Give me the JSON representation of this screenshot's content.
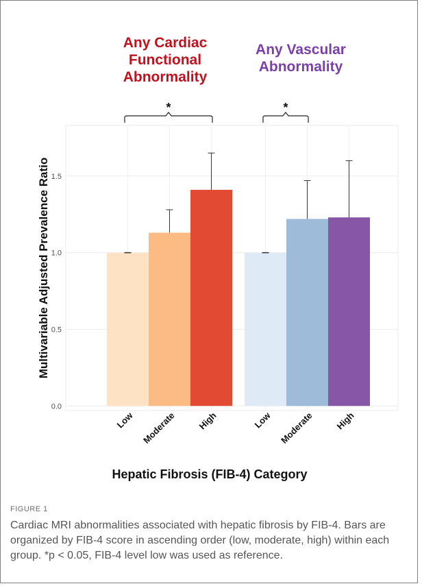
{
  "figure": {
    "label": "FIGURE 1",
    "caption": "Cardiac MRI abnormalities associated with hepatic fibrosis by FIB-4. Bars are organized by FIB-4 score in ascending order (low, moderate, high) within each group. *p < 0.05, FIB-4 level low was used as reference."
  },
  "chart_data": {
    "type": "bar",
    "xlabel": "Hepatic Fibrosis (FIB-4) Category",
    "ylabel": "Multivariable Adjusted Prevalence Ratio",
    "ylim": [
      -0.03,
      1.83
    ],
    "yticks": [
      "0.0",
      "0.5",
      "1.0",
      "1.5"
    ],
    "ytick_values": [
      0.0,
      0.5,
      1.0,
      1.5
    ],
    "grid": true,
    "significance_marker": "*",
    "groups": [
      {
        "name_lines": [
          "Any Cardiac",
          "Functional",
          "Abnormality"
        ],
        "title_color": "#c0111f",
        "categories": [
          "Low",
          "Moderate",
          "High"
        ],
        "values": [
          1.0,
          1.13,
          1.41
        ],
        "error_upper": [
          1.0,
          1.28,
          1.65
        ],
        "colors": [
          "#fde3c4",
          "#fdbb84",
          "#e34a33"
        ]
      },
      {
        "name_lines": [
          "Any Vascular",
          "Abnormality"
        ],
        "title_color": "#7b3fa8",
        "categories": [
          "Low",
          "Moderate",
          "High"
        ],
        "values": [
          1.0,
          1.22,
          1.23
        ],
        "error_upper": [
          1.0,
          1.47,
          1.6
        ],
        "colors": [
          "#deebf7",
          "#9ebcda",
          "#8856a7"
        ]
      }
    ]
  }
}
